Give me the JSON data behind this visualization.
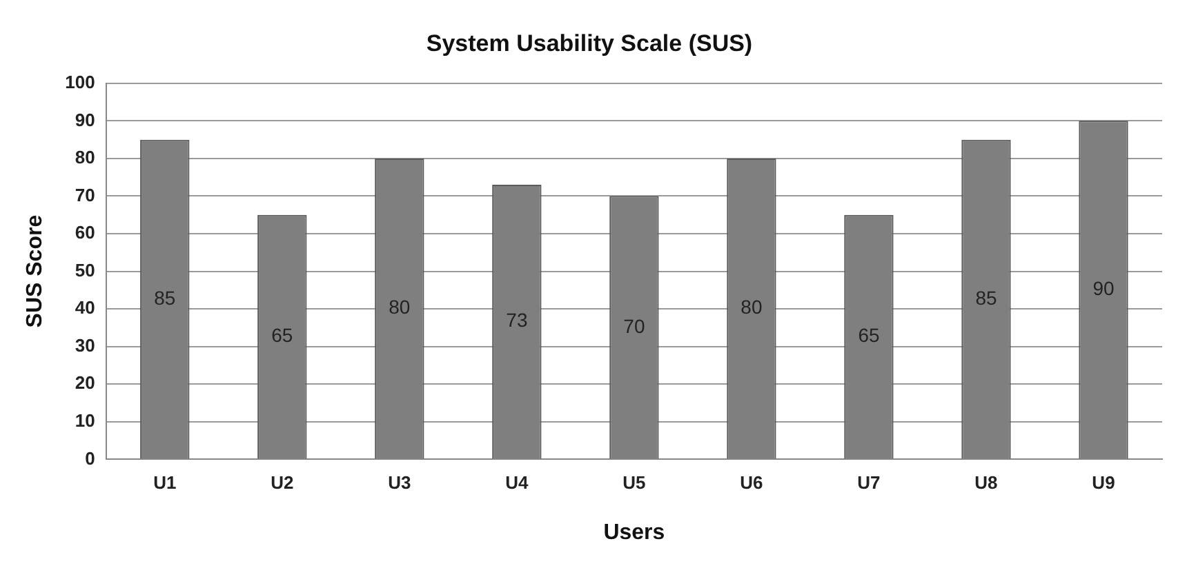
{
  "chart_data": {
    "type": "bar",
    "title": "System Usability Scale (SUS)",
    "xlabel": "Users",
    "ylabel": "SUS Score",
    "categories": [
      "U1",
      "U2",
      "U3",
      "U4",
      "U5",
      "U6",
      "U7",
      "U8",
      "U9"
    ],
    "values": [
      85,
      65,
      80,
      73,
      70,
      80,
      65,
      85,
      90
    ],
    "color": "#7f7f7f",
    "ylim": [
      0,
      100
    ],
    "yticks": [
      0,
      10,
      20,
      30,
      40,
      50,
      60,
      70,
      80,
      90,
      100
    ],
    "grid": "y",
    "data_labels": true
  }
}
